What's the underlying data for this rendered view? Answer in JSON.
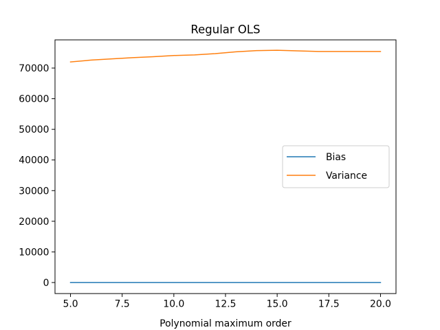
{
  "chart_data": {
    "type": "line",
    "title": "Regular OLS",
    "xlabel": "Polynomial maximum order",
    "ylabel": "",
    "xlim": [
      4.25,
      20.75
    ],
    "ylim": [
      -3600,
      79200
    ],
    "xticks": [
      5.0,
      7.5,
      10.0,
      12.5,
      15.0,
      17.5,
      20.0
    ],
    "xtick_labels": [
      "5.0",
      "7.5",
      "10.0",
      "12.5",
      "15.0",
      "17.5",
      "20.0"
    ],
    "yticks": [
      0,
      10000,
      20000,
      30000,
      40000,
      50000,
      60000,
      70000
    ],
    "ytick_labels": [
      "0",
      "10000",
      "20000",
      "30000",
      "40000",
      "50000",
      "60000",
      "70000"
    ],
    "grid": false,
    "legend_position": "center-right",
    "x": [
      5,
      6,
      7,
      8,
      9,
      10,
      11,
      12,
      13,
      14,
      15,
      16,
      17,
      18,
      19,
      20
    ],
    "series": [
      {
        "name": "Bias",
        "color": "#1f77b4",
        "values": [
          10,
          10,
          10,
          10,
          10,
          10,
          10,
          10,
          10,
          10,
          10,
          10,
          10,
          10,
          10,
          10
        ]
      },
      {
        "name": "Variance",
        "color": "#ff7f0e",
        "values": [
          72000,
          72600,
          73000,
          73400,
          73700,
          74100,
          74300,
          74700,
          75300,
          75700,
          75800,
          75600,
          75400,
          75400,
          75400,
          75400
        ]
      }
    ]
  }
}
